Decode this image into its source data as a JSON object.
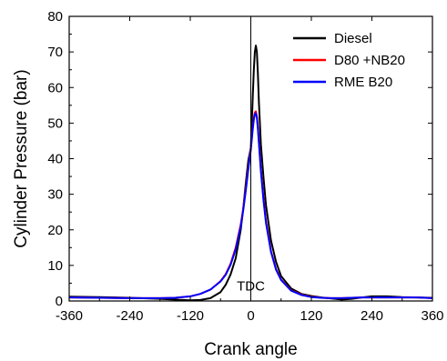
{
  "chart_data": {
    "type": "line",
    "xlabel": "Crank angle",
    "ylabel": "Cylinder Pressure (bar)",
    "xlim": [
      -360,
      360
    ],
    "ylim": [
      0,
      80
    ],
    "xticks": [
      -360,
      -240,
      -120,
      0,
      120,
      240,
      360
    ],
    "yticks": [
      0,
      10,
      20,
      30,
      40,
      50,
      60,
      70,
      80
    ],
    "grid": false,
    "legend_position": "top-right",
    "annotations": [
      {
        "text": "TDC",
        "x": 0,
        "y": 3
      }
    ],
    "vertical_reference_line_x": 0,
    "series": [
      {
        "name": "Diesel",
        "color": "#000000",
        "x": [
          -360,
          -300,
          -240,
          -180,
          -150,
          -120,
          -100,
          -80,
          -60,
          -50,
          -40,
          -30,
          -20,
          -15,
          -10,
          -5,
          0,
          2,
          4,
          6,
          8,
          10,
          12,
          14,
          16,
          20,
          25,
          30,
          40,
          50,
          60,
          80,
          100,
          120,
          140,
          160,
          180,
          200,
          220,
          240,
          270,
          300,
          330,
          360
        ],
        "y": [
          1.2,
          1.1,
          0.9,
          0.6,
          0.4,
          0.2,
          0.3,
          0.8,
          2.5,
          4.5,
          7.5,
          12.0,
          20.0,
          26.0,
          33.0,
          39.5,
          43.0,
          50.0,
          58.0,
          65.0,
          70.0,
          71.8,
          70.0,
          64.0,
          56.0,
          44.0,
          35.0,
          27.0,
          17.0,
          11.0,
          7.0,
          3.5,
          2.0,
          1.4,
          1.0,
          0.7,
          0.4,
          0.6,
          1.0,
          1.3,
          1.3,
          1.1,
          1.0,
          0.9
        ]
      },
      {
        "name": "D80 +NB20",
        "color": "#ff0000",
        "x": [
          -360,
          -300,
          -240,
          -180,
          -150,
          -120,
          -100,
          -80,
          -60,
          -50,
          -40,
          -30,
          -20,
          -15,
          -10,
          -5,
          0,
          2,
          4,
          6,
          8,
          10,
          12,
          14,
          16,
          20,
          25,
          30,
          40,
          50,
          60,
          80,
          100,
          120,
          140,
          160,
          180,
          200,
          220,
          240,
          270,
          300,
          330,
          360
        ],
        "y": [
          1.0,
          0.9,
          0.8,
          0.8,
          0.9,
          1.3,
          2.0,
          3.2,
          5.6,
          7.5,
          10.5,
          15.0,
          21.5,
          26.0,
          31.5,
          37.5,
          43.0,
          46.0,
          49.0,
          51.5,
          53.0,
          53.3,
          52.0,
          49.0,
          45.0,
          37.0,
          29.0,
          22.5,
          14.0,
          9.0,
          6.0,
          3.0,
          1.8,
          1.2,
          0.9,
          0.8,
          0.8,
          0.9,
          1.0,
          1.0,
          1.0,
          1.0,
          1.0,
          0.8
        ]
      },
      {
        "name": "RME B20",
        "color": "#0000ff",
        "x": [
          -360,
          -300,
          -240,
          -180,
          -150,
          -120,
          -100,
          -80,
          -60,
          -50,
          -40,
          -30,
          -20,
          -15,
          -10,
          -5,
          0,
          2,
          4,
          6,
          8,
          10,
          12,
          14,
          16,
          20,
          25,
          30,
          40,
          50,
          60,
          80,
          100,
          120,
          140,
          160,
          180,
          200,
          220,
          240,
          270,
          300,
          330,
          360
        ],
        "y": [
          1.0,
          0.9,
          0.8,
          0.8,
          0.9,
          1.3,
          2.0,
          3.2,
          5.5,
          7.3,
          10.2,
          14.5,
          21.0,
          25.5,
          31.0,
          37.0,
          42.5,
          45.5,
          48.5,
          51.0,
          52.5,
          52.8,
          51.5,
          48.5,
          44.5,
          36.5,
          28.5,
          22.0,
          13.8,
          8.8,
          5.9,
          2.9,
          1.7,
          1.1,
          0.9,
          0.8,
          0.8,
          0.9,
          1.0,
          1.0,
          1.0,
          1.0,
          1.0,
          0.8
        ]
      }
    ]
  }
}
